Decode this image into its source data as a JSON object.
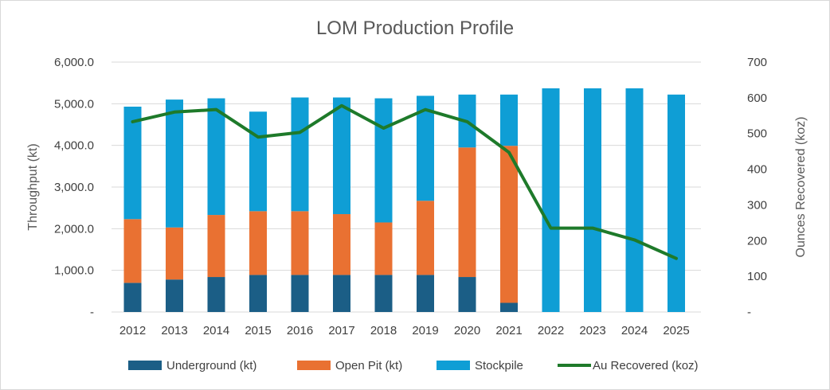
{
  "chart_data": {
    "type": "bar",
    "title": "LOM Production Profile",
    "ylabel": "Throughput (kt)",
    "y2label": "Ounces Recovered (koz)",
    "categories": [
      "2012",
      "2013",
      "2014",
      "2015",
      "2016",
      "2017",
      "2018",
      "2019",
      "2020",
      "2021",
      "2022",
      "2023",
      "2024",
      "2025"
    ],
    "ylim": [
      0,
      6000
    ],
    "y_ticks": [
      "-",
      "1,000.0",
      "2,000.0",
      "3,000.0",
      "4,000.0",
      "5,000.0",
      "6,000.0"
    ],
    "y2lim": [
      0,
      700
    ],
    "y2_ticks": [
      "-",
      "100",
      "200",
      "300",
      "400",
      "500",
      "600",
      "700"
    ],
    "stacked": true,
    "grid": true,
    "legend_position": "bottom",
    "series": [
      {
        "name": "Underground (kt)",
        "type": "bar",
        "axis": "left",
        "color": "#1b5e86",
        "values": [
          700,
          780,
          840,
          890,
          890,
          890,
          890,
          890,
          840,
          220,
          0,
          0,
          0,
          0
        ]
      },
      {
        "name": "Open Pit (kt)",
        "type": "bar",
        "axis": "left",
        "color": "#e97132",
        "values": [
          1530,
          1250,
          1490,
          1530,
          1530,
          1460,
          1260,
          1780,
          3110,
          3770,
          0,
          0,
          0,
          0
        ]
      },
      {
        "name": "Stockpile",
        "type": "bar",
        "axis": "left",
        "color": "#0f9ed5",
        "values": [
          2700,
          3070,
          2800,
          2390,
          2730,
          2800,
          2980,
          2520,
          1270,
          1230,
          5370,
          5370,
          5370,
          5220
        ]
      },
      {
        "name": "Au Recovered (koz)",
        "type": "line",
        "axis": "right",
        "color": "#1e7a2a",
        "values": [
          533,
          560,
          567,
          490,
          503,
          578,
          515,
          567,
          533,
          447,
          235,
          235,
          202,
          150
        ]
      }
    ]
  }
}
